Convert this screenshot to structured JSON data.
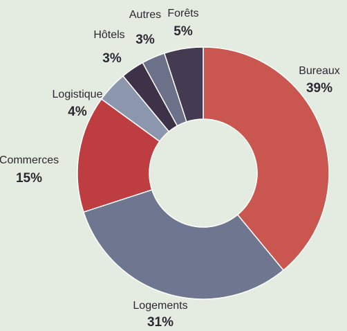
{
  "chart_data": {
    "type": "donut",
    "categories": [
      "Bureaux",
      "Logements",
      "Commerces",
      "Logistique",
      "Hôtels",
      "Autres",
      "Forêts"
    ],
    "values": [
      39,
      31,
      15,
      4,
      3,
      3,
      5
    ],
    "value_labels": [
      "39%",
      "31%",
      "15%",
      "4%",
      "3%",
      "3%",
      "5%"
    ],
    "colors": [
      "#c9574f",
      "#6e7690",
      "#bd3d40",
      "#8c97ad",
      "#3e3249",
      "#6b7189",
      "#443a51"
    ]
  }
}
